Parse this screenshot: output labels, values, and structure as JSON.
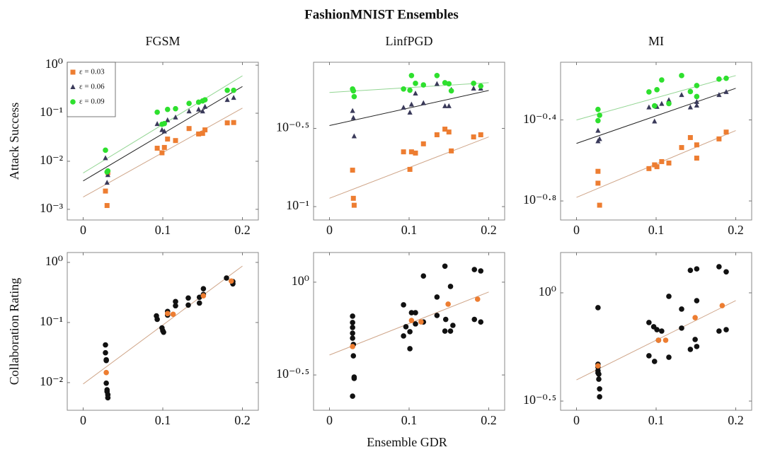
{
  "title": "FashionMNIST Ensembles",
  "xlabel": "Ensemble GDR",
  "chart_data": [
    {
      "type": "scatter",
      "title": "FGSM",
      "ylabel": "Attack Success",
      "log_y": true,
      "legend": "upper left",
      "xlim": [
        -0.02,
        0.22
      ],
      "xticks": [
        0,
        0.1,
        0.2
      ],
      "ylim": [
        0.0006,
        1.15
      ],
      "yticks": [
        {
          "value": 1,
          "label": "10⁰"
        },
        {
          "value": 0.1,
          "label": "10⁻¹"
        },
        {
          "value": 0.01,
          "label": "10⁻²"
        },
        {
          "value": 0.001,
          "label": "10⁻³"
        }
      ],
      "fit_x": [
        0,
        0.2
      ],
      "series": [
        {
          "name": "ε = 0.03",
          "color": "#ed7d31",
          "marker": "square",
          "x": [
            0.028,
            0.03,
            0.031,
            0.093,
            0.099,
            0.102,
            0.106,
            0.116,
            0.133,
            0.145,
            0.15,
            0.153,
            0.181,
            0.189
          ],
          "values": [
            0.0024,
            0.0012,
            0.0058,
            0.0187,
            0.015,
            0.0194,
            0.029,
            0.027,
            0.048,
            0.037,
            0.038,
            0.045,
            0.063,
            0.064
          ],
          "fit": [
            0.0018,
            0.128
          ]
        },
        {
          "name": "ε = 0.06",
          "color": "#3a3a5a",
          "marker": "triangle",
          "x": [
            0.028,
            0.03,
            0.031,
            0.093,
            0.099,
            0.102,
            0.106,
            0.116,
            0.133,
            0.145,
            0.15,
            0.153,
            0.181,
            0.189
          ],
          "values": [
            0.0117,
            0.0036,
            0.0052,
            0.06,
            0.045,
            0.042,
            0.072,
            0.082,
            0.11,
            0.12,
            0.11,
            0.137,
            0.19,
            0.21
          ],
          "fit": [
            0.0039,
            0.36
          ]
        },
        {
          "name": "ε = 0.09",
          "color": "#2ee02e",
          "marker": "circle",
          "x": [
            0.028,
            0.03,
            0.031,
            0.093,
            0.099,
            0.102,
            0.106,
            0.116,
            0.133,
            0.145,
            0.15,
            0.153,
            0.181,
            0.189
          ],
          "values": [
            0.017,
            0.006,
            0.0063,
            0.105,
            0.059,
            0.061,
            0.12,
            0.124,
            0.16,
            0.17,
            0.18,
            0.19,
            0.3,
            0.3
          ],
          "fit": [
            0.0057,
            0.6
          ]
        }
      ]
    },
    {
      "type": "scatter",
      "title": "LinfPGD",
      "log_y": true,
      "xlim": [
        -0.02,
        0.22
      ],
      "xticks": [
        0,
        0.1,
        0.2
      ],
      "ylim": [
        0.0821,
        0.838
      ],
      "yticks": [
        {
          "value": 0.31623,
          "label": "10⁻⁰·⁵"
        },
        {
          "value": 0.1,
          "label": "10⁻¹"
        }
      ],
      "fit_x": [
        0,
        0.2
      ],
      "series": [
        {
          "name": "ε = 0.03",
          "color": "#ed7d31",
          "marker": "square",
          "x": [
            0.029,
            0.03,
            0.031,
            0.093,
            0.101,
            0.103,
            0.108,
            0.118,
            0.135,
            0.145,
            0.15,
            0.153,
            0.181,
            0.19
          ],
          "values": [
            0.171,
            0.113,
            0.102,
            0.224,
            0.173,
            0.224,
            0.22,
            0.252,
            0.288,
            0.313,
            0.3,
            0.227,
            0.279,
            0.288
          ],
          "fit": [
            0.113,
            0.279
          ]
        },
        {
          "name": "ε = 0.06",
          "color": "#3a3a5a",
          "marker": "triangle",
          "x": [
            0.029,
            0.03,
            0.031,
            0.093,
            0.101,
            0.103,
            0.108,
            0.118,
            0.135,
            0.145,
            0.15,
            0.153,
            0.181,
            0.19
          ],
          "values": [
            0.41,
            0.37,
            0.282,
            0.43,
            0.4,
            0.45,
            0.53,
            0.46,
            0.61,
            0.44,
            0.44,
            0.56,
            0.57,
            0.57
          ],
          "fit": [
            0.33,
            0.553
          ]
        },
        {
          "name": "ε = 0.09",
          "color": "#2ee02e",
          "marker": "circle",
          "x": [
            0.029,
            0.03,
            0.031,
            0.093,
            0.101,
            0.103,
            0.108,
            0.118,
            0.135,
            0.145,
            0.15,
            0.153,
            0.181,
            0.19
          ],
          "values": [
            0.565,
            0.55,
            0.505,
            0.565,
            0.555,
            0.689,
            0.614,
            0.6,
            0.689,
            0.62,
            0.61,
            0.55,
            0.614,
            0.59
          ],
          "fit": [
            0.537,
            0.62
          ]
        }
      ]
    },
    {
      "type": "scatter",
      "title": "MI",
      "log_y": true,
      "xlim": [
        -0.02,
        0.22
      ],
      "xticks": [
        0,
        0.1,
        0.2
      ],
      "ylim": [
        0.1276,
        0.768
      ],
      "yticks": [
        {
          "value": 0.39811,
          "label": "10⁻⁰·⁴"
        },
        {
          "value": 0.15849,
          "label": "10⁻⁰·⁸"
        }
      ],
      "fit_x": [
        0,
        0.2
      ],
      "series": [
        {
          "name": "ε = 0.03",
          "color": "#ed7d31",
          "marker": "square",
          "x": [
            0.027,
            0.027,
            0.029,
            0.091,
            0.098,
            0.101,
            0.107,
            0.116,
            0.132,
            0.143,
            0.151,
            0.151,
            0.179,
            0.188
          ],
          "values": [
            0.222,
            0.194,
            0.151,
            0.229,
            0.239,
            0.234,
            0.248,
            0.244,
            0.291,
            0.326,
            0.258,
            0.3,
            0.321,
            0.347
          ],
          "fit": [
            0.165,
            0.353
          ]
        },
        {
          "name": "ε = 0.06",
          "color": "#3a3a5a",
          "marker": "triangle",
          "x": [
            0.027,
            0.027,
            0.029,
            0.091,
            0.098,
            0.101,
            0.107,
            0.116,
            0.132,
            0.143,
            0.151,
            0.151,
            0.179,
            0.188
          ],
          "values": [
            0.353,
            0.313,
            0.321,
            0.46,
            0.392,
            0.463,
            0.479,
            0.5,
            0.53,
            0.46,
            0.47,
            0.49,
            0.53,
            0.548
          ],
          "fit": [
            0.305,
            0.571
          ]
        },
        {
          "name": "ε = 0.09",
          "color": "#2ee02e",
          "marker": "circle",
          "x": [
            0.027,
            0.027,
            0.029,
            0.091,
            0.098,
            0.101,
            0.107,
            0.116,
            0.132,
            0.143,
            0.151,
            0.151,
            0.179,
            0.188
          ],
          "values": [
            0.449,
            0.395,
            0.42,
            0.548,
            0.468,
            0.562,
            0.628,
            0.48,
            0.66,
            0.55,
            0.589,
            0.52,
            0.634,
            0.64
          ],
          "fit": [
            0.398,
            0.66
          ]
        }
      ]
    },
    {
      "type": "scatter",
      "ylabel": "Collaboration Rating",
      "log_y": true,
      "xlim": [
        -0.02,
        0.22
      ],
      "xticks": [
        0,
        0.1,
        0.2
      ],
      "ylim": [
        0.00347,
        1.46
      ],
      "yticks": [
        {
          "value": 1,
          "label": "10⁰"
        },
        {
          "value": 0.1,
          "label": "10⁻¹"
        },
        {
          "value": 0.01,
          "label": "10⁻²"
        }
      ],
      "fit_x": [
        0,
        0.2
      ],
      "series": [
        {
          "color": "#111111",
          "marker": "circle",
          "x": [
            0.028,
            0.028,
            0.029,
            0.029,
            0.029,
            0.03,
            0.03,
            0.031,
            0.031,
            0.092,
            0.093,
            0.099,
            0.1,
            0.101,
            0.106,
            0.106,
            0.116,
            0.116,
            0.132,
            0.132,
            0.146,
            0.146,
            0.151,
            0.151,
            0.18,
            0.188,
            0.188
          ],
          "values": [
            0.0424,
            0.0314,
            0.024,
            0.0233,
            0.0098,
            0.0076,
            0.0071,
            0.0063,
            0.0056,
            0.129,
            0.113,
            0.0815,
            0.073,
            0.069,
            0.133,
            0.153,
            0.223,
            0.19,
            0.256,
            0.195,
            0.263,
            0.211,
            0.365,
            0.293,
            0.55,
            0.48,
            0.44
          ]
        },
        {
          "color": "#ed7d31",
          "marker": "circle",
          "x": [
            0.029,
            0.106,
            0.113,
            0.151,
            0.186
          ],
          "values": [
            0.0147,
            0.141,
            0.137,
            0.278,
            0.49
          ],
          "fit": [
            0.0095,
            0.87
          ]
        }
      ]
    },
    {
      "type": "scatter",
      "log_y": true,
      "xlim": [
        -0.02,
        0.22
      ],
      "xticks": [
        0,
        0.1,
        0.2
      ],
      "ylim": [
        0.204,
        1.445
      ],
      "yticks": [
        {
          "value": 1,
          "label": "10⁰"
        },
        {
          "value": 0.31623,
          "label": "10⁻⁰·⁵"
        }
      ],
      "fit_x": [
        0,
        0.2
      ],
      "series": [
        {
          "color": "#111111",
          "marker": "circle",
          "x": [
            0.029,
            0.029,
            0.029,
            0.029,
            0.029,
            0.03,
            0.03,
            0.031,
            0.031,
            0.029,
            0.093,
            0.093,
            0.096,
            0.101,
            0.101,
            0.103,
            0.108,
            0.108,
            0.118,
            0.118,
            0.135,
            0.135,
            0.145,
            0.145,
            0.146,
            0.152,
            0.152,
            0.155,
            0.182,
            0.182,
            0.19,
            0.19
          ],
          "values": [
            0.656,
            0.606,
            0.57,
            0.531,
            0.499,
            0.462,
            0.401,
            0.308,
            0.303,
            0.243,
            0.755,
            0.513,
            0.575,
            0.541,
            0.438,
            0.685,
            0.685,
            0.596,
            1.08,
            0.61,
            0.832,
            0.662,
            1.22,
            0.545,
            0.63,
            0.949,
            0.545,
            0.585,
            1.17,
            0.63,
            1.15,
            0.61
          ]
        },
        {
          "color": "#ed7d31",
          "marker": "circle",
          "x": [
            0.029,
            0.103,
            0.115,
            0.149,
            0.186
          ],
          "values": [
            0.45,
            0.622,
            0.611,
            0.762,
            0.81
          ],
          "fit": [
            0.405,
            0.885
          ]
        }
      ]
    },
    {
      "type": "scatter",
      "log_y": true,
      "xlim": [
        -0.02,
        0.22
      ],
      "xticks": [
        0,
        0.1,
        0.2
      ],
      "ylim": [
        0.2868,
        1.535
      ],
      "yticks": [
        {
          "value": 1,
          "label": "10⁰"
        },
        {
          "value": 0.31623,
          "label": "10⁻⁰·⁵"
        }
      ],
      "fit_x": [
        0,
        0.2
      ],
      "series": [
        {
          "color": "#111111",
          "marker": "circle",
          "x": [
            0.027,
            0.027,
            0.027,
            0.027,
            0.027,
            0.028,
            0.028,
            0.029,
            0.029,
            0.091,
            0.091,
            0.097,
            0.098,
            0.101,
            0.103,
            0.107,
            0.116,
            0.116,
            0.132,
            0.132,
            0.143,
            0.143,
            0.149,
            0.151,
            0.151,
            0.151,
            0.179,
            0.179,
            0.188,
            0.188
          ],
          "values": [
            0.854,
            0.468,
            0.454,
            0.437,
            0.427,
            0.421,
            0.399,
            0.36,
            0.331,
            0.729,
            0.512,
            0.697,
            0.482,
            0.676,
            0.604,
            0.666,
            0.963,
            0.504,
            0.841,
            0.687,
            1.27,
            0.548,
            0.609,
            1.29,
            0.565,
            0.92,
            1.32,
            0.666,
            1.25,
            0.676
          ]
        },
        {
          "color": "#ed7d31",
          "marker": "circle",
          "x": [
            0.027,
            0.103,
            0.112,
            0.149,
            0.183
          ],
          "values": [
            0.46,
            0.604,
            0.604,
            0.768,
            0.873
          ],
          "fit": [
            0.396,
            0.921
          ]
        }
      ]
    }
  ]
}
